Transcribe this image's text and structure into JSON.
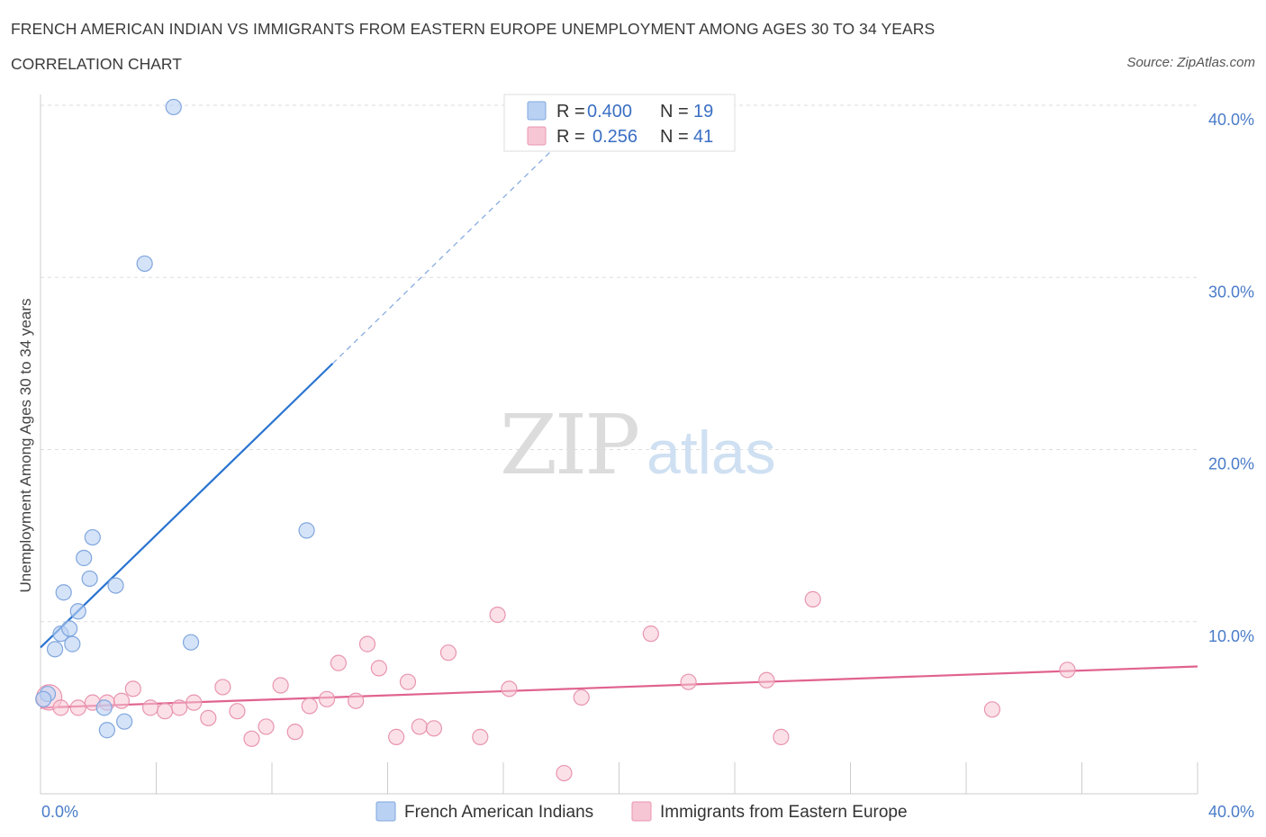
{
  "header": {
    "title": "FRENCH AMERICAN INDIAN VS IMMIGRANTS FROM EASTERN EUROPE UNEMPLOYMENT AMONG AGES 30 TO 34 YEARS",
    "subtitle": "CORRELATION CHART",
    "source": "Source: ZipAtlas.com"
  },
  "watermark": {
    "zip": "ZIP",
    "atlas": "atlas"
  },
  "legend": {
    "r_label": "R =",
    "n_label": "N =",
    "entries": [
      {
        "r": "0.400",
        "n": "19"
      },
      {
        "r": "0.256",
        "n": "41"
      }
    ]
  },
  "colors": {
    "blue_fill": "#b9d1f3",
    "blue_stroke": "#7fa6de",
    "blue_line": "#2a74d0",
    "pink_fill": "#f7c6d5",
    "pink_stroke": "#e895af",
    "pink_line": "#e0628f",
    "grid": "#dddddd",
    "axis_text": "#4a7cc8"
  },
  "chart_data": {
    "type": "scatter",
    "title": "FRENCH AMERICAN INDIAN VS IMMIGRANTS FROM EASTERN EUROPE UNEMPLOYMENT AMONG AGES 30 TO 34 YEARS",
    "xlabel": "",
    "ylabel": "Unemployment Among Ages 30 to 34 years",
    "xlim": [
      0,
      40
    ],
    "ylim": [
      0,
      40
    ],
    "x_tick_labels": [
      "0.0%",
      "40.0%"
    ],
    "y_tick_labels": [
      "10.0%",
      "20.0%",
      "30.0%",
      "40.0%"
    ],
    "y_ticks": [
      10,
      20,
      30,
      40
    ],
    "grid": true,
    "legend_position": "top-center",
    "series": [
      {
        "name": "French American Indians",
        "r": 0.4,
        "n": 19,
        "trend": {
          "x0": 0.0,
          "y0": 8.5,
          "x1": 10.1,
          "y1": 25.0,
          "dashed_to_x": 18.5
        },
        "points": [
          [
            0.25,
            5.8
          ],
          [
            0.5,
            8.4
          ],
          [
            0.7,
            9.3
          ],
          [
            0.8,
            11.7
          ],
          [
            1.0,
            9.6
          ],
          [
            1.1,
            8.7
          ],
          [
            1.3,
            10.6
          ],
          [
            1.5,
            13.7
          ],
          [
            1.7,
            12.5
          ],
          [
            1.8,
            14.9
          ],
          [
            2.2,
            5.0
          ],
          [
            2.3,
            3.7
          ],
          [
            2.6,
            12.1
          ],
          [
            2.9,
            4.2
          ],
          [
            3.6,
            30.8
          ],
          [
            4.6,
            39.9
          ],
          [
            5.2,
            8.8
          ],
          [
            9.2,
            15.3
          ],
          [
            0.1,
            5.5
          ]
        ]
      },
      {
        "name": "Immigrants from Eastern Europe",
        "r": 0.256,
        "n": 41,
        "trend": {
          "x0": 0.0,
          "y0": 5.0,
          "x1": 40.0,
          "y1": 7.4
        },
        "points": [
          [
            0.3,
            5.6
          ],
          [
            0.7,
            5.0
          ],
          [
            1.3,
            5.0
          ],
          [
            1.8,
            5.3
          ],
          [
            2.3,
            5.3
          ],
          [
            2.8,
            5.4
          ],
          [
            3.2,
            6.1
          ],
          [
            3.8,
            5.0
          ],
          [
            4.3,
            4.8
          ],
          [
            4.8,
            5.0
          ],
          [
            5.3,
            5.3
          ],
          [
            5.8,
            4.4
          ],
          [
            6.3,
            6.2
          ],
          [
            6.8,
            4.8
          ],
          [
            7.3,
            3.2
          ],
          [
            7.8,
            3.9
          ],
          [
            8.3,
            6.3
          ],
          [
            8.8,
            3.6
          ],
          [
            9.3,
            5.1
          ],
          [
            9.9,
            5.5
          ],
          [
            10.3,
            7.6
          ],
          [
            10.9,
            5.4
          ],
          [
            11.3,
            8.7
          ],
          [
            11.7,
            7.3
          ],
          [
            12.3,
            3.3
          ],
          [
            12.7,
            6.5
          ],
          [
            13.1,
            3.9
          ],
          [
            13.6,
            3.8
          ],
          [
            14.1,
            8.2
          ],
          [
            15.2,
            3.3
          ],
          [
            15.8,
            10.4
          ],
          [
            16.2,
            6.1
          ],
          [
            18.1,
            1.2
          ],
          [
            18.7,
            5.6
          ],
          [
            21.1,
            9.3
          ],
          [
            22.4,
            6.5
          ],
          [
            25.1,
            6.6
          ],
          [
            25.6,
            3.3
          ],
          [
            26.7,
            11.3
          ],
          [
            32.9,
            4.9
          ],
          [
            35.5,
            7.2
          ]
        ]
      }
    ]
  }
}
